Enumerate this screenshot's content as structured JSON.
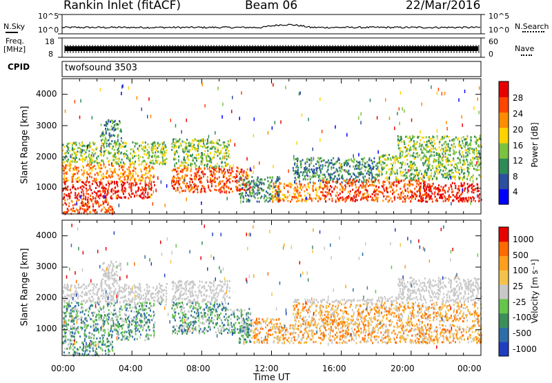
{
  "header": {
    "station": "Rankin Inlet (fitACF)",
    "beam": "Beam 06",
    "date": "22/Mar/2016"
  },
  "strip1": {
    "left_label": "N.Sky",
    "right_label": "N.Search",
    "left_ticks": [
      "10^5",
      "10^0"
    ],
    "right_ticks": [
      "10^5",
      "10^0"
    ]
  },
  "strip2": {
    "left_label_1": "Freq.",
    "left_label_2": "[MHz]",
    "right_label": "Nave",
    "left_ticks": [
      "18",
      "8"
    ],
    "right_ticks": [
      "60",
      "0"
    ]
  },
  "cpid": {
    "label": "CPID",
    "value": "twofsound 3503"
  },
  "chart_data": [
    {
      "type": "heatmap",
      "quantity": "Power",
      "ylabel": "Slant Range [km]",
      "yticks": [
        "4000",
        "3000",
        "2000",
        "1000"
      ],
      "ylim": [
        180,
        4500
      ],
      "colorbar_label": "Power [dB]",
      "colorbar_ticks": [
        "28",
        "24",
        "20",
        "16",
        "12",
        "8",
        "4"
      ],
      "colors": [
        "#0000ff",
        "#2c4fa0",
        "#2e8b57",
        "#7cc240",
        "#ffd300",
        "#ff8c00",
        "#ff4500",
        "#e60000"
      ]
    },
    {
      "type": "heatmap",
      "quantity": "Velocity",
      "ylabel": "Slant Range [km]",
      "yticks": [
        "4000",
        "3000",
        "2000",
        "1000"
      ],
      "ylim": [
        180,
        4500
      ],
      "colorbar_label": "Velocity [m s⁻¹]",
      "colorbar_ticks": [
        "1000",
        "500",
        "100",
        "25",
        "-25",
        "-100",
        "-500",
        "-1000"
      ],
      "colors": [
        "#e60000",
        "#ff6a00",
        "#ff9f1c",
        "#f4c24b",
        "#c8c8c8",
        "#66c64a",
        "#3c8f5a",
        "#2e6ea8",
        "#1f3fbf"
      ]
    }
  ],
  "time_axis": {
    "ticks": [
      "00:00",
      "04:00",
      "08:00",
      "12:00",
      "16:00",
      "20:00",
      "00:00"
    ],
    "label": "Time UT"
  },
  "colors": {
    "frame": "#000000",
    "background": "#ffffff"
  }
}
